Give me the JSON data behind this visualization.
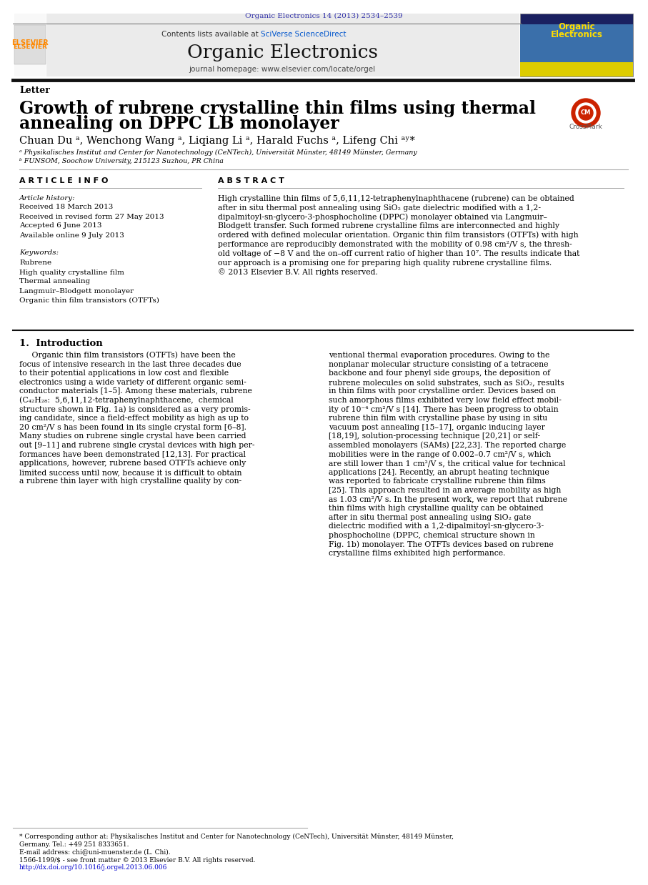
{
  "page_background": "#ffffff",
  "top_journal_ref": "Organic Electronics 14 (2013) 2534–2539",
  "top_journal_ref_color": "#3333aa",
  "header_bg": "#ebebeb",
  "header_title": "Organic Electronics",
  "header_subtitle_prefix": "Contents lists available at ",
  "header_subtitle_link": "SciVerse ScienceDirect",
  "header_subtitle_link_color": "#0055cc",
  "header_journal_url": "journal homepage: www.elsevier.com/locate/orgel",
  "section_label": "Letter",
  "paper_title_line1": "Growth of rubrene crystalline thin films using thermal",
  "paper_title_line2": "annealing on DPPC LB monolayer",
  "authors": "Chuan Du ᵃ, Wenchong Wang ᵃ, Liqiang Li ᵃ, Harald Fuchs ᵃ, Lifeng Chi ᵃʸ*",
  "affil_a": "ᵃ Physikalisches Institut and Center for Nanotechnology (CeNTech), Universität Münster, 48149 Münster, Germany",
  "affil_b": "ᵇ FUNSOM, Soochow University, 215123 Suzhou, PR China",
  "article_info_title": "A R T I C L E  I N F O",
  "article_history_label": "Article history:",
  "received": "Received 18 March 2013",
  "received_revised": "Received in revised form 27 May 2013",
  "accepted": "Accepted 6 June 2013",
  "available": "Available online 9 July 2013",
  "keywords_label": "Keywords:",
  "keyword1": "Rubrene",
  "keyword2": "High quality crystalline film",
  "keyword3": "Thermal annealing",
  "keyword4": "Langmuir–Blodgett monolayer",
  "keyword5": "Organic thin film transistors (OTFTs)",
  "abstract_title": "A B S T R A C T",
  "abstract_lines": [
    "High crystalline thin films of 5,6,11,12-tetraphenylnaphthacene (rubrene) can be obtained",
    "after in situ thermal post annealing using SiO₂ gate dielectric modified with a 1,2-",
    "dipalmitoyl-sn-glycero-3-phosphocholine (DPPC) monolayer obtained via Langmuir–",
    "Blodgett transfer. Such formed rubrene crystalline films are interconnected and highly",
    "ordered with defined molecular orientation. Organic thin film transistors (OTFTs) with high",
    "performance are reproducibly demonstrated with the mobility of 0.98 cm²/V s, the thresh-",
    "old voltage of −8 V and the on–off current ratio of higher than 10⁷. The results indicate that",
    "our approach is a promising one for preparing high quality rubrene crystalline films.",
    "© 2013 Elsevier B.V. All rights reserved."
  ],
  "intro_title": "1.  Introduction",
  "intro_col1_lines": [
    "     Organic thin film transistors (OTFTs) have been the",
    "focus of intensive research in the last three decades due",
    "to their potential applications in low cost and flexible",
    "electronics using a wide variety of different organic semi-",
    "conductor materials [1–5]. Among these materials, rubrene",
    "(C₄₂H₂₈:  5,6,11,12-tetraphenylnaphthacene,  chemical",
    "structure shown in Fig. 1a) is considered as a very promis-",
    "ing candidate, since a field-effect mobility as high as up to",
    "20 cm²/V s has been found in its single crystal form [6–8].",
    "Many studies on rubrene single crystal have been carried",
    "out [9–11] and rubrene single crystal devices with high per-",
    "formances have been demonstrated [12,13]. For practical",
    "applications, however, rubrene based OTFTs achieve only",
    "limited success until now, because it is difficult to obtain",
    "a rubrene thin layer with high crystalline quality by con-"
  ],
  "intro_col2_lines": [
    "ventional thermal evaporation procedures. Owing to the",
    "nonplanar molecular structure consisting of a tetracene",
    "backbone and four phenyl side groups, the deposition of",
    "rubrene molecules on solid substrates, such as SiO₂, results",
    "in thin films with poor crystalline order. Devices based on",
    "such amorphous films exhibited very low field effect mobil-",
    "ity of 10⁻⁴ cm²/V s [14]. There has been progress to obtain",
    "rubrene thin film with crystalline phase by using in situ",
    "vacuum post annealing [15–17], organic inducing layer",
    "[18,19], solution-processing technique [20,21] or self-",
    "assembled monolayers (SAMs) [22,23]. The reported charge",
    "mobilities were in the range of 0.002–0.7 cm²/V s, which",
    "are still lower than 1 cm²/V s, the critical value for technical",
    "applications [24]. Recently, an abrupt heating technique",
    "was reported to fabricate crystalline rubrene thin films",
    "[25]. This approach resulted in an average mobility as high",
    "as 1.03 cm²/V s. In the present work, we report that rubrene",
    "thin films with high crystalline quality can be obtained",
    "after in situ thermal post annealing using SiO₂ gate",
    "dielectric modified with a 1,2-dipalmitoyl-sn-glycero-3-",
    "phosphocholine (DPPC, chemical structure shown in",
    "Fig. 1b) monolayer. The OTFTs devices based on rubrene",
    "crystalline films exhibited high performance."
  ],
  "footnote_lines": [
    {
      "text": "* Corresponding author at: Physikalisches Institut and Center for Nanotechnology (CeNTech), Universität Münster, 48149 Münster,",
      "link": false
    },
    {
      "text": "Germany. Tel.: +49 251 8333651.",
      "link": false
    },
    {
      "text": "E-mail address: chi@uni-muenster.de (L. Chi).",
      "link": false
    },
    {
      "text": "1566-1199/$ - see front matter © 2013 Elsevier B.V. All rights reserved.",
      "link": false
    },
    {
      "text": "http://dx.doi.org/10.1016/j.orgel.2013.06.006",
      "link": true
    }
  ],
  "link_color": "#0000cc",
  "elsevier_color": "#ff8800",
  "cover_bg": "#1a2060",
  "cover_text_color": "#ffdd00",
  "crossmark_color": "#cc2200"
}
